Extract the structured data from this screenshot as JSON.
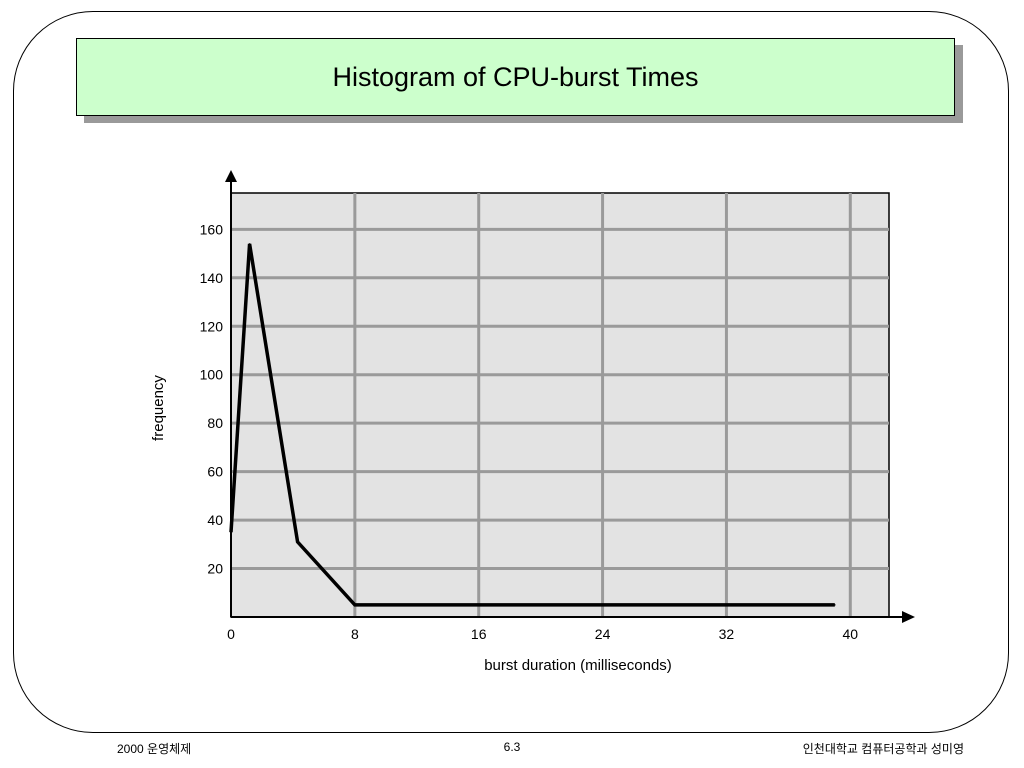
{
  "slide": {
    "title": "Histogram of CPU-burst Times",
    "footer_left": "2000 운영체제",
    "footer_center": "6.3",
    "footer_right": "인천대학교 컴퓨터공학과 성미영"
  },
  "colors": {
    "title_background": "#ccffcc",
    "plot_background": "#e3e3e3",
    "grid": "#9a9a9a",
    "line": "#000000"
  },
  "chart_data": {
    "type": "line",
    "title": "",
    "xlabel": "burst duration (milliseconds)",
    "ylabel": "frequency",
    "xlim": [
      0,
      42.5
    ],
    "ylim": [
      0,
      175
    ],
    "x_ticks": [
      0,
      8,
      16,
      24,
      32,
      40
    ],
    "y_ticks": [
      20,
      40,
      60,
      80,
      100,
      120,
      140,
      160
    ],
    "grid": true,
    "series": [
      {
        "x": [
          0,
          1.2,
          4.3,
          8,
          39
        ],
        "y": [
          35,
          154,
          31,
          5,
          5
        ]
      }
    ]
  }
}
